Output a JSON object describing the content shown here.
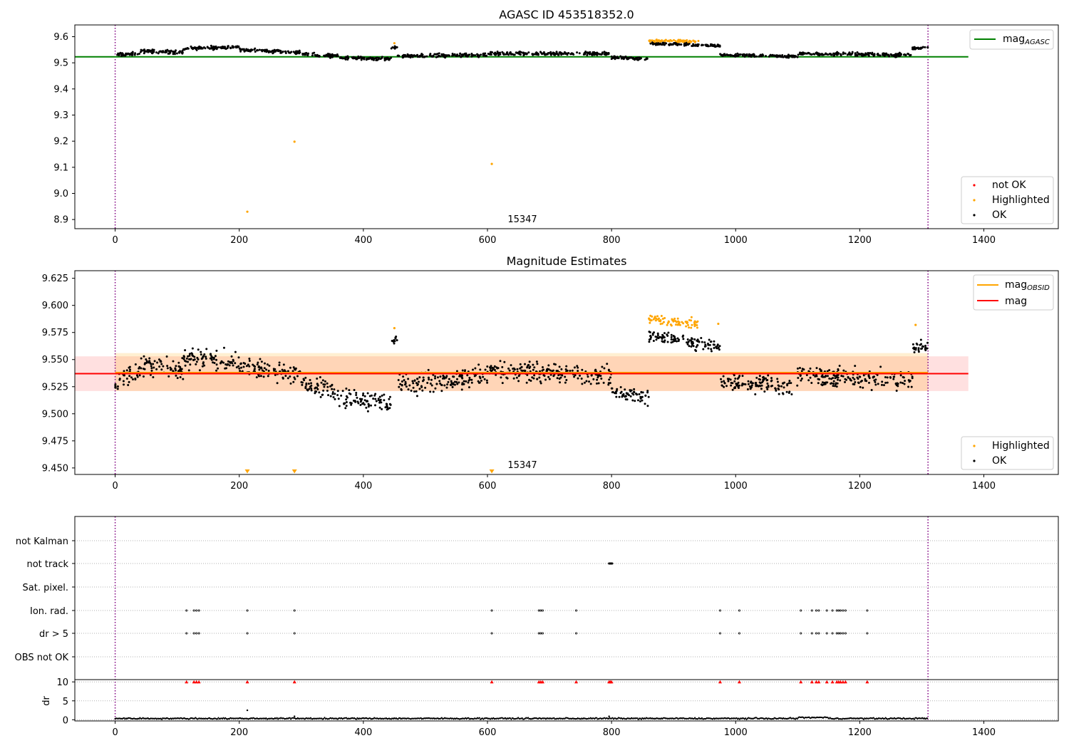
{
  "chart_data": [
    {
      "type": "scatter",
      "title": "AGASC ID 453518352.0",
      "xlim": [
        -65,
        1520
      ],
      "ylim": [
        8.865,
        9.645
      ],
      "xticks": [
        0,
        200,
        400,
        600,
        800,
        1000,
        1200,
        1400
      ],
      "yticks": [
        8.9,
        9.0,
        9.1,
        9.2,
        9.3,
        9.4,
        9.5,
        9.6
      ],
      "ytick_labels": [
        "8.9",
        "9.0",
        "9.1",
        "9.2",
        "9.3",
        "9.4",
        "9.5",
        "9.6"
      ],
      "vlines": [
        0,
        1310
      ],
      "mag_agasc": 9.523,
      "mag_agasc_x": [
        -65,
        1375
      ],
      "annotation": {
        "text": "15347",
        "x": 630,
        "y": 8.9
      },
      "legend_lines": [
        {
          "name": "mag",
          "sub": "AGASC",
          "color": "#008000"
        }
      ],
      "legend_points": [
        {
          "name": "not OK",
          "color": "#ff0000"
        },
        {
          "name": "Highlighted",
          "color": "#ffa500"
        },
        {
          "name": "OK",
          "color": "#000000"
        }
      ],
      "highlighted_points": [
        [
          213,
          8.93
        ],
        [
          289,
          9.198
        ],
        [
          607,
          9.113
        ],
        [
          450,
          9.575
        ]
      ],
      "segments": [
        {
          "x": [
            0,
            40
          ],
          "y": [
            9.53,
            9.535
          ],
          "noise": 0.012,
          "cls": "ok"
        },
        {
          "x": [
            40,
            110
          ],
          "y": [
            9.545,
            9.54
          ],
          "noise": 0.012,
          "cls": "ok"
        },
        {
          "x": [
            110,
            200
          ],
          "y": [
            9.555,
            9.56
          ],
          "noise": 0.011,
          "cls": "ok"
        },
        {
          "x": [
            200,
            300
          ],
          "y": [
            9.55,
            9.54
          ],
          "noise": 0.011,
          "cls": "ok"
        },
        {
          "x": [
            300,
            360
          ],
          "y": [
            9.535,
            9.525
          ],
          "noise": 0.012,
          "cls": "ok"
        },
        {
          "x": [
            360,
            445
          ],
          "y": [
            9.52,
            9.515
          ],
          "noise": 0.01,
          "cls": "ok"
        },
        {
          "x": [
            445,
            455
          ],
          "y": [
            9.555,
            9.56
          ],
          "noise": 0.008,
          "cls": "ok"
        },
        {
          "x": [
            455,
            600
          ],
          "y": [
            9.525,
            9.53
          ],
          "noise": 0.012,
          "cls": "ok"
        },
        {
          "x": [
            600,
            800
          ],
          "y": [
            9.535,
            9.535
          ],
          "noise": 0.012,
          "cls": "ok"
        },
        {
          "x": [
            800,
            860
          ],
          "y": [
            9.52,
            9.515
          ],
          "noise": 0.01,
          "cls": "ok"
        },
        {
          "x": [
            860,
            975
          ],
          "y": [
            9.575,
            9.565
          ],
          "noise": 0.01,
          "cls": "ok"
        },
        {
          "x": [
            860,
            940
          ],
          "y": [
            9.585,
            9.582
          ],
          "noise": 0.007,
          "cls": "hl"
        },
        {
          "x": [
            975,
            1100
          ],
          "y": [
            9.53,
            9.525
          ],
          "noise": 0.01,
          "cls": "ok"
        },
        {
          "x": [
            1100,
            1285
          ],
          "y": [
            9.535,
            9.53
          ],
          "noise": 0.012,
          "cls": "ok"
        },
        {
          "x": [
            1285,
            1310
          ],
          "y": [
            9.555,
            9.56
          ],
          "noise": 0.01,
          "cls": "ok"
        }
      ]
    },
    {
      "type": "scatter",
      "title": "Magnitude Estimates",
      "xlim": [
        -65,
        1520
      ],
      "ylim": [
        9.444,
        9.632
      ],
      "xticks": [
        0,
        200,
        400,
        600,
        800,
        1000,
        1200,
        1400
      ],
      "yticks": [
        9.45,
        9.475,
        9.5,
        9.525,
        9.55,
        9.575,
        9.6,
        9.625
      ],
      "ytick_labels": [
        "9.450",
        "9.475",
        "9.500",
        "9.525",
        "9.550",
        "9.575",
        "9.600",
        "9.625"
      ],
      "vlines": [
        0,
        1310
      ],
      "mag": 9.537,
      "mag_band": [
        9.521,
        9.553
      ],
      "mag_x": [
        -65,
        1375
      ],
      "mag_obsid": 9.538,
      "mag_obsid_band": [
        9.521,
        9.556
      ],
      "mag_obsid_x": [
        0,
        1310
      ],
      "annotation": {
        "text": "15347",
        "x": 630,
        "y": 9.45
      },
      "legend_lines": [
        {
          "name": "mag",
          "sub": "OBSID",
          "color": "#ffa500"
        },
        {
          "name": "mag",
          "sub": "",
          "color": "#ff0000"
        }
      ],
      "legend_points": [
        {
          "name": "Highlighted",
          "color": "#ffa500"
        },
        {
          "name": "OK",
          "color": "#000000"
        }
      ],
      "lowlimit_markers": [
        213,
        289,
        607
      ],
      "highlighted_points": [
        [
          450,
          9.579
        ],
        [
          1290,
          9.582
        ],
        [
          972,
          9.583
        ]
      ],
      "segments": [
        {
          "x": [
            0,
            40
          ],
          "y": [
            9.53,
            9.54
          ],
          "noise": 0.016,
          "cls": "ok"
        },
        {
          "x": [
            40,
            110
          ],
          "y": [
            9.545,
            9.54
          ],
          "noise": 0.016,
          "cls": "ok"
        },
        {
          "x": [
            110,
            200
          ],
          "y": [
            9.55,
            9.55
          ],
          "noise": 0.016,
          "cls": "ok"
        },
        {
          "x": [
            200,
            300
          ],
          "y": [
            9.545,
            9.535
          ],
          "noise": 0.014,
          "cls": "ok"
        },
        {
          "x": [
            300,
            360
          ],
          "y": [
            9.53,
            9.52
          ],
          "noise": 0.016,
          "cls": "ok"
        },
        {
          "x": [
            360,
            445
          ],
          "y": [
            9.515,
            9.51
          ],
          "noise": 0.015,
          "cls": "ok"
        },
        {
          "x": [
            445,
            455
          ],
          "y": [
            9.565,
            9.57
          ],
          "noise": 0.008,
          "cls": "ok"
        },
        {
          "x": [
            455,
            600
          ],
          "y": [
            9.525,
            9.535
          ],
          "noise": 0.016,
          "cls": "ok"
        },
        {
          "x": [
            600,
            800
          ],
          "y": [
            9.54,
            9.535
          ],
          "noise": 0.016,
          "cls": "ok"
        },
        {
          "x": [
            800,
            860
          ],
          "y": [
            9.52,
            9.515
          ],
          "noise": 0.013,
          "cls": "ok"
        },
        {
          "x": [
            860,
            975
          ],
          "y": [
            9.572,
            9.562
          ],
          "noise": 0.01,
          "cls": "ok"
        },
        {
          "x": [
            860,
            940
          ],
          "y": [
            9.587,
            9.583
          ],
          "noise": 0.008,
          "cls": "hl"
        },
        {
          "x": [
            975,
            1100
          ],
          "y": [
            9.53,
            9.525
          ],
          "noise": 0.014,
          "cls": "ok"
        },
        {
          "x": [
            1100,
            1285
          ],
          "y": [
            9.535,
            9.53
          ],
          "noise": 0.016,
          "cls": "ok"
        },
        {
          "x": [
            1285,
            1310
          ],
          "y": [
            9.56,
            9.563
          ],
          "noise": 0.01,
          "cls": "ok"
        }
      ]
    },
    {
      "type": "scatter",
      "title": "",
      "xlim": [
        -65,
        1520
      ],
      "xticks": [
        0,
        200,
        400,
        600,
        800,
        1000,
        1200,
        1400
      ],
      "vlines": [
        0,
        1310
      ],
      "flag_rows": [
        "not Kalman",
        "not track",
        "Sat. pixel.",
        "Ion. rad.",
        "dr > 5",
        "OBS not OK"
      ],
      "flags": {
        "not Kalman": [],
        "not track": [
          796,
          797,
          798,
          799,
          800,
          801
        ],
        "Sat. pixel.": [],
        "Ion. rad.": [
          115,
          127,
          131,
          135,
          213,
          289,
          607,
          683,
          686,
          689,
          743,
          975,
          1006,
          1105,
          1123,
          1130,
          1134,
          1147,
          1156,
          1163,
          1166,
          1169,
          1173,
          1177,
          1212
        ],
        "dr > 5": [
          115,
          127,
          131,
          135,
          213,
          289,
          607,
          683,
          686,
          689,
          743,
          975,
          1006,
          1105,
          1123,
          1130,
          1134,
          1147,
          1156,
          1163,
          1166,
          1169,
          1173,
          1177,
          1212
        ],
        "OBS not OK": []
      },
      "dr_ylabel": "dr",
      "dr_ylim": [
        -0.3,
        10.6
      ],
      "dr_yticks": [
        0,
        5,
        10
      ],
      "dr_clip": 10,
      "dr_baseline": 0.35,
      "dr_outliers": [
        [
          213,
          2.5
        ],
        [
          289,
          0.9
        ],
        [
          796,
          0.9
        ]
      ],
      "dr_clipped_x": [
        115,
        127,
        131,
        135,
        213,
        289,
        607,
        683,
        686,
        689,
        743,
        796,
        798,
        800,
        975,
        1006,
        1105,
        1123,
        1130,
        1134,
        1147,
        1156,
        1163,
        1166,
        1169,
        1173,
        1177,
        1212
      ]
    }
  ]
}
